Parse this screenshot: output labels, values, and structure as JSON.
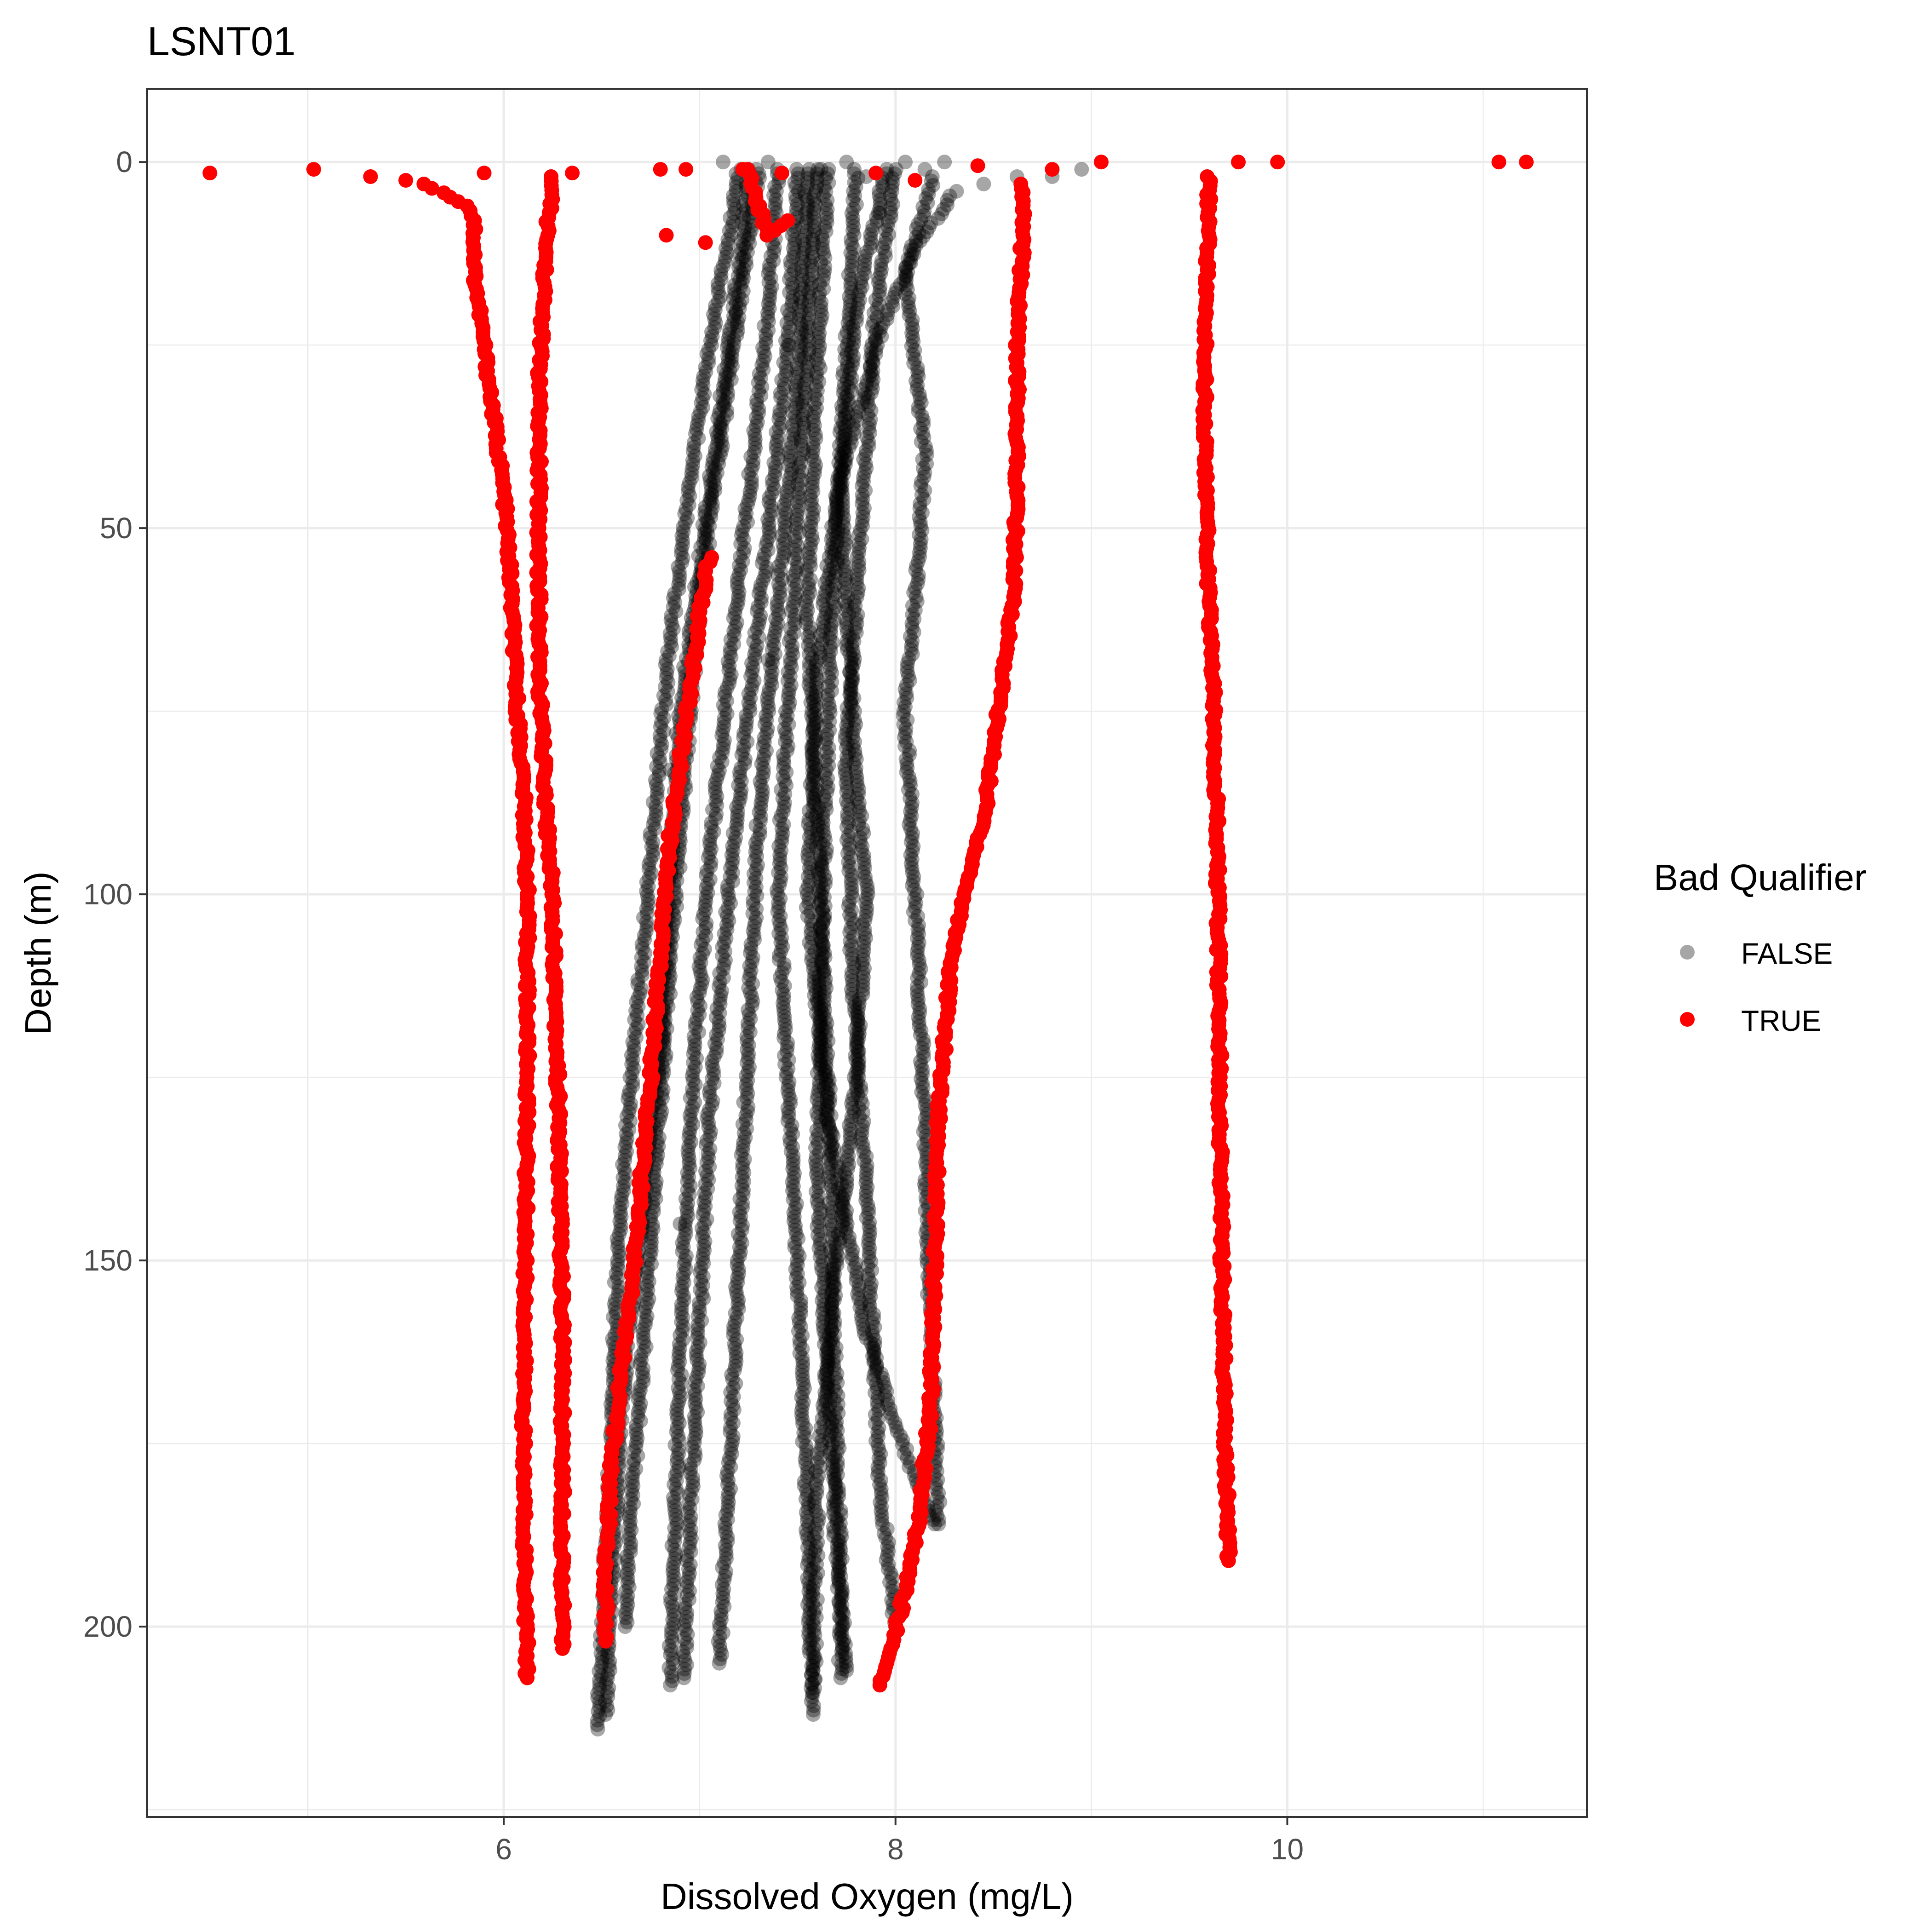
{
  "chart_data": {
    "type": "scatter",
    "title": "LSNT01",
    "xlabel": "Dissolved Oxygen (mg/L)",
    "ylabel": "Depth (m)",
    "xlim": [
      4.18,
      11.53
    ],
    "ylim": [
      226,
      -10
    ],
    "y_reversed": true,
    "x_ticks": [
      6,
      8,
      10
    ],
    "y_ticks": [
      0,
      50,
      100,
      150,
      200
    ],
    "grid": true,
    "legend": {
      "title": "Bad Qualifier",
      "position": "right",
      "entries": [
        {
          "label": "FALSE",
          "color": "#000000",
          "opacity": 0.35
        },
        {
          "label": "TRUE",
          "color": "#ff0000",
          "opacity": 1.0
        }
      ]
    },
    "series": [
      {
        "name": "FALSE",
        "color": "#000000",
        "opacity": 0.35,
        "profiles": [
          {
            "x": [
              7.2,
              7.15,
              7.05,
              6.95,
              6.85,
              6.78,
              6.72,
              6.65,
              6.58,
              6.55,
              6.5,
              6.48
            ],
            "y": [
              1,
              10,
              25,
              45,
              65,
              85,
              105,
              125,
              150,
              175,
              200,
              214
            ]
          },
          {
            "x": [
              7.25,
              7.2,
              7.1,
              7.0,
              6.9,
              6.85,
              6.8,
              6.7,
              6.6,
              6.55,
              6.52
            ],
            "y": [
              1,
              15,
              35,
              55,
              75,
              95,
              120,
              145,
              170,
              195,
              212
            ]
          },
          {
            "x": [
              7.3,
              7.2,
              7.1,
              7.0,
              6.92,
              6.85,
              6.78,
              6.72,
              6.65,
              6.62
            ],
            "y": [
              1,
              20,
              40,
              60,
              85,
              110,
              135,
              160,
              185,
              200
            ]
          },
          {
            "x": [
              7.4,
              7.35,
              7.25,
              7.15,
              7.05,
              6.98,
              6.92,
              6.88,
              6.85
            ],
            "y": [
              1,
              20,
              45,
              70,
              95,
              120,
              150,
              180,
              208
            ]
          },
          {
            "x": [
              7.5,
              7.45,
              7.35,
              7.25,
              7.15,
              7.05,
              7.0,
              6.95,
              6.92
            ],
            "y": [
              1,
              25,
              50,
              75,
              100,
              130,
              160,
              185,
              207
            ]
          },
          {
            "x": [
              7.55,
              7.5,
              7.4,
              7.3,
              7.25,
              7.2,
              7.15,
              7.1
            ],
            "y": [
              1,
              30,
              60,
              90,
              120,
              150,
              180,
              205
            ]
          },
          {
            "x": [
              7.6,
              7.55,
              7.5,
              7.45,
              7.4,
              7.45,
              7.5,
              7.55,
              7.58
            ],
            "y": [
              1,
              25,
              50,
              75,
              100,
              125,
              150,
              185,
              212
            ]
          },
          {
            "x": [
              7.65,
              7.6,
              7.55,
              7.6,
              7.65,
              7.68,
              7.7,
              7.72,
              7.72
            ],
            "y": [
              1,
              30,
              60,
              90,
              120,
              150,
              175,
              195,
              207
            ]
          },
          {
            "x": [
              7.8,
              7.75,
              7.7,
              7.65,
              7.62,
              7.6,
              7.65,
              7.7,
              7.75
            ],
            "y": [
              1,
              25,
              50,
              80,
              110,
              140,
              165,
              190,
              206
            ]
          },
          {
            "x": [
              7.95,
              7.8,
              7.72,
              7.78,
              7.85,
              7.8,
              7.7,
              7.6,
              7.58
            ],
            "y": [
              1,
              20,
              45,
              75,
              100,
              125,
              150,
              180,
              209
            ]
          },
          {
            "x": [
              8.0,
              7.9,
              7.85,
              7.8,
              7.75,
              7.78,
              7.85,
              7.92,
              8.0
            ],
            "y": [
              1,
              20,
              40,
              60,
              80,
              110,
              140,
              180,
              200
            ]
          },
          {
            "x": [
              8.2,
              8.05,
              8.15,
              8.1,
              8.05,
              8.1,
              8.15,
              8.18,
              8.22
            ],
            "y": [
              2,
              15,
              40,
              60,
              75,
              100,
              130,
              160,
              186
            ]
          },
          {
            "x": [
              8.3,
              8.1,
              7.9,
              7.7,
              7.6,
              7.55,
              7.65,
              7.85,
              8.1,
              8.2
            ],
            "y": [
              4,
              12,
              25,
              45,
              70,
              100,
              130,
              160,
              180,
              186
            ]
          }
        ],
        "surface_points": [
          {
            "x": 7.12,
            "y": 0
          },
          {
            "x": 7.35,
            "y": 0
          },
          {
            "x": 7.62,
            "y": 1
          },
          {
            "x": 7.75,
            "y": 0
          },
          {
            "x": 7.85,
            "y": 2
          },
          {
            "x": 7.92,
            "y": 7
          },
          {
            "x": 8.05,
            "y": 0
          },
          {
            "x": 8.15,
            "y": 1
          },
          {
            "x": 8.25,
            "y": 0
          },
          {
            "x": 8.45,
            "y": 3
          },
          {
            "x": 8.62,
            "y": 2
          },
          {
            "x": 8.8,
            "y": 2
          },
          {
            "x": 8.95,
            "y": 1
          },
          {
            "x": 9.05,
            "y": 0
          },
          {
            "x": 7.45,
            "y": 25
          },
          {
            "x": 7.35,
            "y": 68
          },
          {
            "x": 6.85,
            "y": 83
          },
          {
            "x": 6.9,
            "y": 145
          }
        ]
      },
      {
        "name": "TRUE",
        "color": "#ff0000",
        "opacity": 1.0,
        "profiles": [
          {
            "x": [
              5.6,
              5.82,
              5.85,
              5.85,
              5.9,
              5.95,
              6.0,
              6.03,
              6.05,
              6.07,
              6.1,
              6.12,
              6.12,
              6.11,
              6.1,
              6.11,
              6.12
            ],
            "y": [
              3,
              6,
              8,
              15,
              25,
              35,
              45,
              55,
              65,
              75,
              85,
              100,
              125,
              150,
              175,
              195,
              207
            ]
          },
          {
            "x": [
              6.25,
              6.22,
              6.2,
              6.18,
              6.18,
              6.18,
              6.2,
              6.22,
              6.25,
              6.28,
              6.3,
              6.3,
              6.3
            ],
            "y": [
              2,
              10,
              20,
              30,
              50,
              70,
              80,
              90,
              100,
              130,
              160,
              190,
              203
            ]
          },
          {
            "x": [
              7.05,
              7.0,
              6.95,
              6.9,
              6.85,
              6.8,
              6.75,
              6.7,
              6.65,
              6.6,
              6.55,
              6.52,
              6.52
            ],
            "y": [
              54,
              62,
              72,
              82,
              92,
              108,
              125,
              140,
              155,
              165,
              178,
              192,
              202
            ]
          },
          {
            "x": [
              8.65,
              8.65,
              8.62,
              8.62,
              8.6,
              8.55,
              8.45,
              8.35,
              8.28,
              8.25,
              8.22,
              8.2,
              8.18,
              8.12,
              8.05,
              7.98,
              7.92
            ],
            "y": [
              3,
              10,
              25,
              45,
              60,
              70,
              90,
              100,
              110,
              120,
              130,
              150,
              170,
              185,
              195,
              203,
              208
            ]
          },
          {
            "x": [
              9.6,
              9.6,
              9.58,
              9.58,
              9.6,
              9.62,
              9.64,
              9.65,
              9.66,
              9.68,
              9.7
            ],
            "y": [
              2,
              10,
              20,
              40,
              60,
              70,
              90,
              110,
              140,
              170,
              191
            ]
          },
          {
            "x": [
              7.25,
              7.3,
              7.35,
              7.45
            ],
            "y": [
              1,
              6,
              10,
              8
            ]
          }
        ],
        "surface_points": [
          {
            "x": 4.5,
            "y": 1.5
          },
          {
            "x": 5.03,
            "y": 1
          },
          {
            "x": 5.32,
            "y": 2
          },
          {
            "x": 5.5,
            "y": 2.5
          },
          {
            "x": 5.9,
            "y": 1.5
          },
          {
            "x": 6.35,
            "y": 1.5
          },
          {
            "x": 6.8,
            "y": 1
          },
          {
            "x": 6.93,
            "y": 1
          },
          {
            "x": 6.83,
            "y": 10
          },
          {
            "x": 7.03,
            "y": 11
          },
          {
            "x": 7.22,
            "y": 1
          },
          {
            "x": 7.42,
            "y": 1.5
          },
          {
            "x": 7.9,
            "y": 1.5
          },
          {
            "x": 8.1,
            "y": 2.5
          },
          {
            "x": 8.42,
            "y": 0.5
          },
          {
            "x": 8.8,
            "y": 1
          },
          {
            "x": 9.05,
            "y": 0
          },
          {
            "x": 9.75,
            "y": 0
          },
          {
            "x": 9.95,
            "y": 0
          },
          {
            "x": 11.08,
            "y": 0
          },
          {
            "x": 11.22,
            "y": 0
          }
        ]
      }
    ]
  }
}
